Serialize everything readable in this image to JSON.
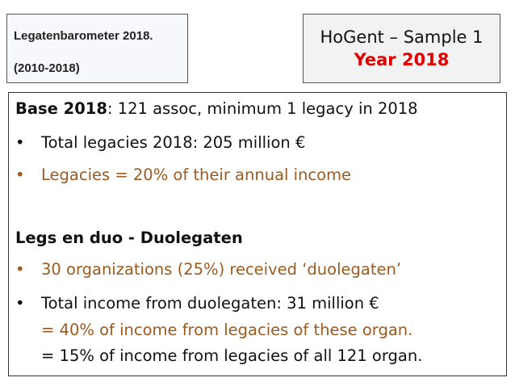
{
  "source_box": {
    "title": "Legatenbarometer 2018.",
    "period": "(2010-2018)"
  },
  "header_box": {
    "title": "HoGent – Sample 1",
    "year": "Year 2018"
  },
  "main": {
    "base_label": "Base 2018",
    "base_text": ": 121 assoc, minimum 1 legacy in 2018",
    "bullets1": [
      {
        "text": "Total legacies 2018: 205 million €",
        "color": "#111111"
      },
      {
        "text": "Legacies = 20% of their annual income",
        "color": "#9c5a1f"
      }
    ],
    "section2_title": "Legs en duo - Duolegaten",
    "bullets2": [
      {
        "text": "30 organizations (25%) received ‘duolegaten’",
        "color": "#9c5a1f"
      },
      {
        "text": "Total income from duolegaten: 31 million €",
        "color": "#111111"
      }
    ],
    "sub1": "= 40% of income from legacies of these organ.",
    "sub2": "= 15% of income from legacies of all 121 organ.",
    "bullet_char": "•"
  },
  "colors": {
    "accent_red": "#e00000",
    "accent_brown": "#9c5a1f"
  }
}
